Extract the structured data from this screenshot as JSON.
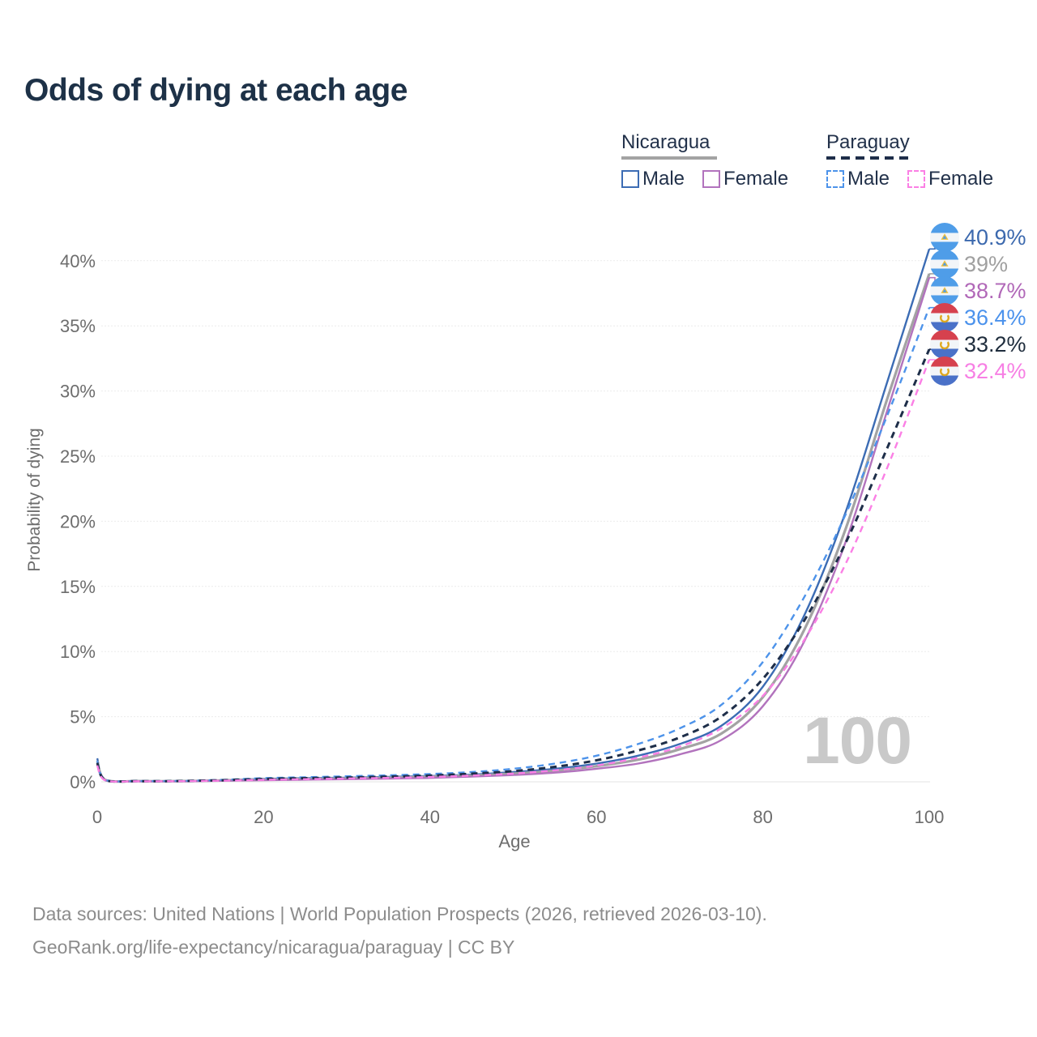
{
  "title": "Odds of dying at each age",
  "legend": {
    "groups": [
      {
        "name": "Nicaragua",
        "line_style": "solid",
        "line_color": "#a3a3a3",
        "items": [
          {
            "label": "Male",
            "color": "#3c6cb4"
          },
          {
            "label": "Female",
            "color": "#b273bd"
          }
        ]
      },
      {
        "name": "Paraguay",
        "line_style": "dashed",
        "line_color": "#1e2e49",
        "items": [
          {
            "label": "Male",
            "color": "#4d93ea"
          },
          {
            "label": "Female",
            "color": "#fb7fe5"
          }
        ]
      }
    ]
  },
  "axes": {
    "x_label": "Age",
    "y_label": "Probability of dying",
    "x_ticks": [
      0,
      20,
      40,
      60,
      80,
      100
    ],
    "y_ticks": [
      "0%",
      "5%",
      "10%",
      "15%",
      "20%",
      "25%",
      "30%",
      "35%",
      "40%"
    ]
  },
  "watermark": "100",
  "end_labels": [
    {
      "value": "40.9%",
      "country": "nicaragua",
      "color": "#3c69ae",
      "series": "Nicaragua Male"
    },
    {
      "value": "39%",
      "country": "nicaragua",
      "color": "#a0a0a0",
      "series": "Nicaragua"
    },
    {
      "value": "38.7%",
      "country": "nicaragua",
      "color": "#b168b8",
      "series": "Nicaragua Female"
    },
    {
      "value": "36.4%",
      "country": "paraguay",
      "color": "#4b92ec",
      "series": "Paraguay Male"
    },
    {
      "value": "33.2%",
      "country": "paraguay",
      "color": "#1f2d3d",
      "series": "Paraguay"
    },
    {
      "value": "32.4%",
      "country": "paraguay",
      "color": "#f77fe4",
      "series": "Paraguay Female"
    }
  ],
  "caption": {
    "line1": "Data sources: United Nations | World Population Prospects (2026, retrieved 2026-03-10).",
    "line2": "GeoRank.org/life-expectancy/nicaragua/paraguay | CC BY"
  },
  "chart_data": {
    "type": "line",
    "title": "Odds of dying at each age",
    "xlabel": "Age",
    "ylabel": "Probability of dying",
    "xlim": [
      0,
      100
    ],
    "ylim_percent": [
      0,
      42
    ],
    "grid": true,
    "legend_position": "top-right",
    "x": [
      0,
      1,
      5,
      10,
      15,
      20,
      25,
      30,
      35,
      40,
      45,
      50,
      55,
      60,
      65,
      70,
      75,
      80,
      85,
      90,
      95,
      100
    ],
    "series": [
      {
        "name": "Nicaragua Male",
        "style": "solid",
        "width": 2.4,
        "color": "#3c6cb4",
        "values": [
          1.8,
          0.15,
          0.06,
          0.06,
          0.12,
          0.22,
          0.28,
          0.32,
          0.38,
          0.45,
          0.55,
          0.75,
          1.0,
          1.4,
          2.0,
          2.9,
          4.3,
          7.3,
          12.8,
          20.8,
          30.8,
          40.9
        ]
      },
      {
        "name": "Nicaragua",
        "style": "solid",
        "width": 3.2,
        "color": "#a3a3a3",
        "values": [
          1.6,
          0.13,
          0.05,
          0.05,
          0.1,
          0.17,
          0.22,
          0.26,
          0.31,
          0.38,
          0.47,
          0.63,
          0.85,
          1.2,
          1.7,
          2.5,
          3.7,
          6.5,
          11.7,
          19.5,
          29.5,
          39.0
        ]
      },
      {
        "name": "Nicaragua Female",
        "style": "solid",
        "width": 2.4,
        "color": "#b273bd",
        "values": [
          1.4,
          0.11,
          0.04,
          0.04,
          0.08,
          0.12,
          0.16,
          0.2,
          0.25,
          0.3,
          0.4,
          0.52,
          0.7,
          1.0,
          1.4,
          2.1,
          3.2,
          5.8,
          10.8,
          18.5,
          28.6,
          38.7
        ]
      },
      {
        "name": "Paraguay Male",
        "style": "dashed",
        "width": 2.4,
        "color": "#4d93ea",
        "values": [
          1.6,
          0.14,
          0.06,
          0.07,
          0.15,
          0.28,
          0.35,
          0.42,
          0.5,
          0.6,
          0.75,
          1.0,
          1.4,
          2.0,
          2.9,
          4.1,
          5.9,
          9.2,
          14.2,
          20.6,
          28.2,
          36.4
        ]
      },
      {
        "name": "Paraguay",
        "style": "dashed",
        "width": 3.0,
        "color": "#1e2e49",
        "values": [
          1.45,
          0.12,
          0.05,
          0.06,
          0.12,
          0.22,
          0.28,
          0.33,
          0.4,
          0.48,
          0.62,
          0.82,
          1.15,
          1.65,
          2.4,
          3.4,
          5.0,
          7.9,
          12.4,
          18.4,
          25.7,
          33.2
        ]
      },
      {
        "name": "Paraguay Female",
        "style": "dashed",
        "width": 2.4,
        "color": "#fb7fe5",
        "values": [
          1.25,
          0.1,
          0.04,
          0.05,
          0.09,
          0.15,
          0.2,
          0.25,
          0.3,
          0.37,
          0.48,
          0.63,
          0.88,
          1.25,
          1.85,
          2.7,
          4.1,
          6.6,
          10.9,
          16.8,
          24.2,
          32.4
        ]
      }
    ],
    "end_values_percent": [
      40.9,
      39.0,
      38.7,
      36.4,
      33.2,
      32.4
    ]
  }
}
